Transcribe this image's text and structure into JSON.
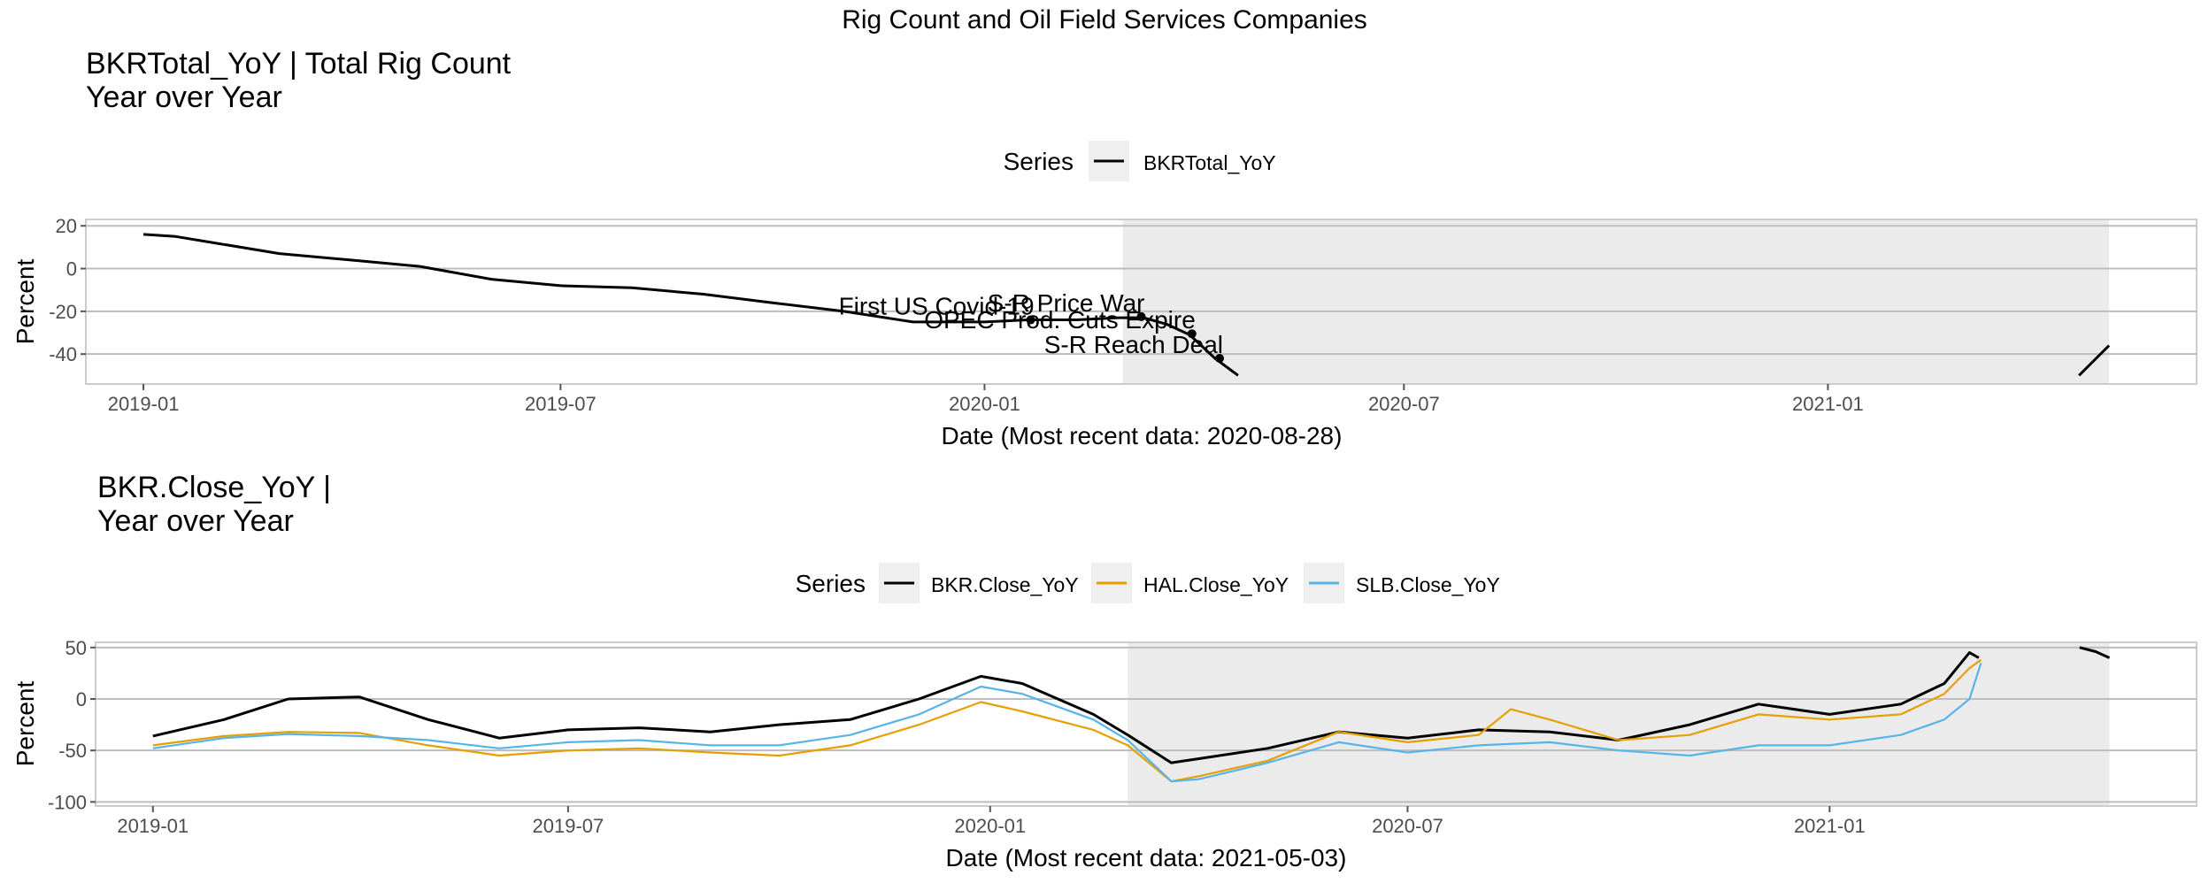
{
  "page_title": "Rig Count and Oil Field Services Companies",
  "chart_data": [
    {
      "type": "line",
      "title": "BKRTotal_YoY | Total Rig Count",
      "subtitle": "Year over Year",
      "legend_title": "Series",
      "legend_position": "top",
      "xlabel": "Date (Most recent data: 2020-08-28)",
      "ylabel": "Percent",
      "xlim": [
        "2018-12-07",
        "2021-06-10"
      ],
      "ylim": [
        -54,
        23
      ],
      "x_ticks": [
        "2019-01",
        "2019-07",
        "2020-01",
        "2020-07",
        "2021-01"
      ],
      "y_ticks": [
        20,
        0,
        -20,
        -40
      ],
      "grid": true,
      "shaded_period": [
        "2020-03-01",
        "2021-05-03"
      ],
      "series": [
        {
          "name": "BKRTotal_YoY",
          "color": "#000000",
          "points": [
            [
              "2019-01-01",
              16
            ],
            [
              "2019-01-15",
              15
            ],
            [
              "2019-02-01",
              12
            ],
            [
              "2019-03-01",
              7
            ],
            [
              "2019-04-01",
              4
            ],
            [
              "2019-05-01",
              1
            ],
            [
              "2019-06-01",
              -5
            ],
            [
              "2019-07-01",
              -8
            ],
            [
              "2019-08-01",
              -9
            ],
            [
              "2019-09-01",
              -12
            ],
            [
              "2019-10-01",
              -16
            ],
            [
              "2019-11-01",
              -20
            ],
            [
              "2019-12-01",
              -25
            ],
            [
              "2020-01-01",
              -25
            ],
            [
              "2020-01-20",
              -24
            ],
            [
              "2020-02-10",
              -24
            ],
            [
              "2020-02-28",
              -23
            ],
            [
              "2020-03-10",
              -23
            ],
            [
              "2020-03-20",
              -26
            ],
            [
              "2020-03-30",
              -31
            ],
            [
              "2020-04-05",
              -37
            ],
            [
              "2020-04-10",
              -42
            ],
            [
              "2020-04-20",
              -50
            ]
          ]
        },
        {
          "name": "BKRTotal_YoY",
          "color": "#000000",
          "points": [
            [
              "2021-04-20",
              -50
            ],
            [
              "2021-05-03",
              -36
            ]
          ]
        }
      ],
      "events": [
        {
          "date": "2020-01-21",
          "value": -24,
          "label": "First US Covid-19"
        },
        {
          "date": "2020-03-09",
          "value": -22.5,
          "label": "S-R Price War"
        },
        {
          "date": "2020-03-31",
          "value": -30.5,
          "label": "OPEC Prod. Cuts Expire"
        },
        {
          "date": "2020-04-12",
          "value": -42,
          "label": "S-R Reach Deal"
        }
      ]
    },
    {
      "type": "line",
      "title": "BKR.Close_YoY |",
      "subtitle": "Year over Year",
      "legend_title": "Series",
      "legend_position": "top",
      "xlabel": "Date (Most recent data: 2021-05-03)",
      "ylabel": "Percent",
      "xlim": [
        "2018-12-07",
        "2021-06-10"
      ],
      "ylim": [
        -104,
        55
      ],
      "x_ticks": [
        "2019-01",
        "2019-07",
        "2020-01",
        "2020-07",
        "2021-01"
      ],
      "y_ticks": [
        50,
        0,
        -50,
        -100
      ],
      "grid": true,
      "shaded_period": [
        "2020-03-01",
        "2021-05-03"
      ],
      "series": [
        {
          "name": "BKR.Close_YoY",
          "color": "#000000",
          "points": [
            [
              "2019-01-01",
              -36
            ],
            [
              "2019-02-01",
              -20
            ],
            [
              "2019-03-01",
              0
            ],
            [
              "2019-04-01",
              2
            ],
            [
              "2019-05-01",
              -20
            ],
            [
              "2019-06-01",
              -38
            ],
            [
              "2019-07-01",
              -30
            ],
            [
              "2019-08-01",
              -28
            ],
            [
              "2019-09-01",
              -32
            ],
            [
              "2019-10-01",
              -25
            ],
            [
              "2019-11-01",
              -20
            ],
            [
              "2019-12-01",
              0
            ],
            [
              "2019-12-28",
              22
            ],
            [
              "2020-01-15",
              15
            ],
            [
              "2020-02-15",
              -15
            ],
            [
              "2020-03-01",
              -35
            ],
            [
              "2020-03-20",
              -62
            ],
            [
              "2020-04-01",
              -58
            ],
            [
              "2020-05-01",
              -48
            ],
            [
              "2020-06-01",
              -32
            ],
            [
              "2020-07-01",
              -38
            ],
            [
              "2020-08-01",
              -30
            ],
            [
              "2020-09-01",
              -32
            ],
            [
              "2020-10-01",
              -40
            ],
            [
              "2020-11-01",
              -25
            ],
            [
              "2020-12-01",
              -5
            ],
            [
              "2021-01-01",
              -15
            ],
            [
              "2021-02-01",
              -5
            ],
            [
              "2021-02-20",
              15
            ],
            [
              "2021-03-03",
              45
            ],
            [
              "2021-03-07",
              40
            ]
          ]
        },
        {
          "name": "BKR.Close_YoY",
          "color": "#000000",
          "points": [
            [
              "2021-04-20",
              50
            ],
            [
              "2021-04-27",
              46
            ],
            [
              "2021-05-03",
              40
            ]
          ]
        },
        {
          "name": "HAL.Close_YoY",
          "color": "#E69F00",
          "points": [
            [
              "2019-01-01",
              -45
            ],
            [
              "2019-02-01",
              -36
            ],
            [
              "2019-03-01",
              -32
            ],
            [
              "2019-04-01",
              -33
            ],
            [
              "2019-05-01",
              -45
            ],
            [
              "2019-06-01",
              -55
            ],
            [
              "2019-07-01",
              -50
            ],
            [
              "2019-08-01",
              -48
            ],
            [
              "2019-09-01",
              -52
            ],
            [
              "2019-10-01",
              -55
            ],
            [
              "2019-11-01",
              -45
            ],
            [
              "2019-12-01",
              -25
            ],
            [
              "2019-12-28",
              -3
            ],
            [
              "2020-01-15",
              -12
            ],
            [
              "2020-02-15",
              -30
            ],
            [
              "2020-03-01",
              -45
            ],
            [
              "2020-03-20",
              -80
            ],
            [
              "2020-04-01",
              -75
            ],
            [
              "2020-05-01",
              -60
            ],
            [
              "2020-06-01",
              -32
            ],
            [
              "2020-07-01",
              -42
            ],
            [
              "2020-08-01",
              -35
            ],
            [
              "2020-08-15",
              -10
            ],
            [
              "2020-09-01",
              -20
            ],
            [
              "2020-10-01",
              -40
            ],
            [
              "2020-11-01",
              -35
            ],
            [
              "2020-12-01",
              -15
            ],
            [
              "2021-01-01",
              -20
            ],
            [
              "2021-02-01",
              -15
            ],
            [
              "2021-02-20",
              5
            ],
            [
              "2021-03-03",
              30
            ],
            [
              "2021-03-08",
              38
            ]
          ]
        },
        {
          "name": "SLB.Close_YoY",
          "color": "#56B4E9",
          "points": [
            [
              "2019-01-01",
              -48
            ],
            [
              "2019-02-01",
              -38
            ],
            [
              "2019-03-01",
              -34
            ],
            [
              "2019-04-01",
              -36
            ],
            [
              "2019-05-01",
              -40
            ],
            [
              "2019-06-01",
              -48
            ],
            [
              "2019-07-01",
              -42
            ],
            [
              "2019-08-01",
              -40
            ],
            [
              "2019-09-01",
              -45
            ],
            [
              "2019-10-01",
              -45
            ],
            [
              "2019-11-01",
              -35
            ],
            [
              "2019-12-01",
              -15
            ],
            [
              "2019-12-28",
              12
            ],
            [
              "2020-01-15",
              5
            ],
            [
              "2020-02-15",
              -20
            ],
            [
              "2020-03-01",
              -40
            ],
            [
              "2020-03-20",
              -80
            ],
            [
              "2020-04-01",
              -78
            ],
            [
              "2020-05-01",
              -62
            ],
            [
              "2020-06-01",
              -42
            ],
            [
              "2020-07-01",
              -52
            ],
            [
              "2020-08-01",
              -45
            ],
            [
              "2020-09-01",
              -42
            ],
            [
              "2020-10-01",
              -50
            ],
            [
              "2020-11-01",
              -55
            ],
            [
              "2020-12-01",
              -45
            ],
            [
              "2021-01-01",
              -45
            ],
            [
              "2021-02-01",
              -35
            ],
            [
              "2021-02-20",
              -20
            ],
            [
              "2021-03-03",
              0
            ],
            [
              "2021-03-08",
              35
            ]
          ]
        }
      ]
    }
  ]
}
